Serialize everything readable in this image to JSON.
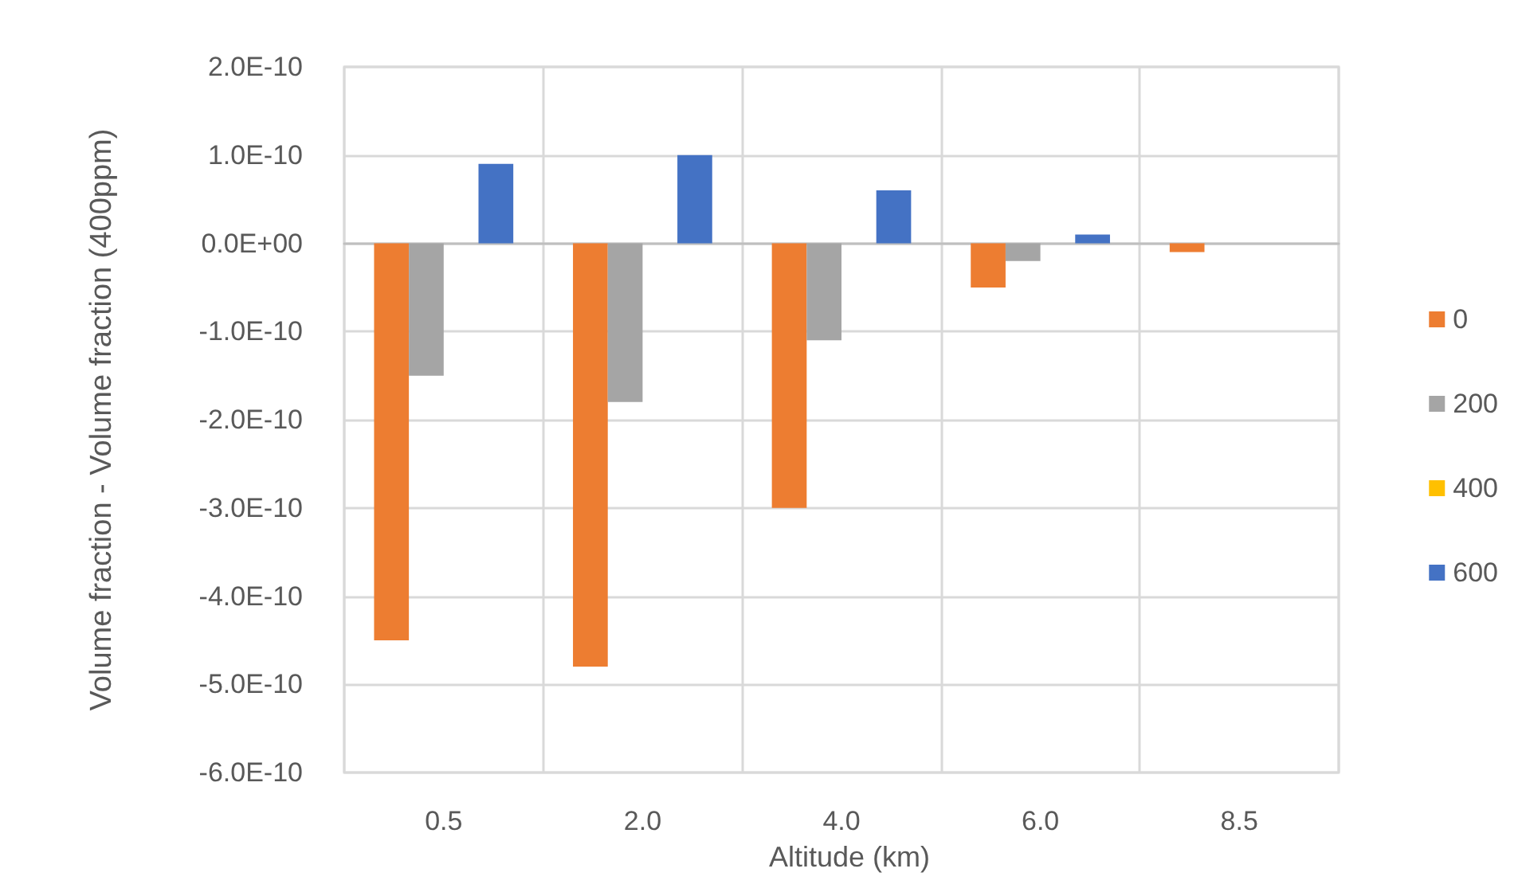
{
  "chart_data": {
    "type": "bar",
    "xlabel": "Altitude (km)",
    "ylabel": "Volume fraction - Volume fraction (400ppm)",
    "categories": [
      "0.5",
      "2.0",
      "4.0",
      "6.0",
      "8.5"
    ],
    "series": [
      {
        "name": "0",
        "color": "#ed7d31",
        "values": [
          -4.5e-10,
          -4.8e-10,
          -3e-10,
          -5e-11,
          -1e-11
        ]
      },
      {
        "name": "200",
        "color": "#a5a5a5",
        "values": [
          -1.5e-10,
          -1.8e-10,
          -1.1e-10,
          -2e-11,
          0
        ]
      },
      {
        "name": "400",
        "color": "#ffc000",
        "values": [
          0,
          0,
          0,
          0,
          0
        ]
      },
      {
        "name": "600",
        "color": "#4472c4",
        "values": [
          9e-11,
          1e-10,
          6e-11,
          1e-11,
          0
        ]
      }
    ],
    "ylim": [
      -6e-10,
      2e-10
    ],
    "yticks": [
      {
        "value": -6e-10,
        "label": "-6.0E-10"
      },
      {
        "value": -5e-10,
        "label": "-5.0E-10"
      },
      {
        "value": -4e-10,
        "label": "-4.0E-10"
      },
      {
        "value": -3e-10,
        "label": "-3.0E-10"
      },
      {
        "value": -2e-10,
        "label": "-2.0E-10"
      },
      {
        "value": -1e-10,
        "label": "-1.0E-10"
      },
      {
        "value": 0,
        "label": "0.0E+00"
      },
      {
        "value": 1e-10,
        "label": "1.0E-10"
      },
      {
        "value": 2e-10,
        "label": "2.0E-10"
      }
    ],
    "grid": true,
    "legend": "right"
  }
}
